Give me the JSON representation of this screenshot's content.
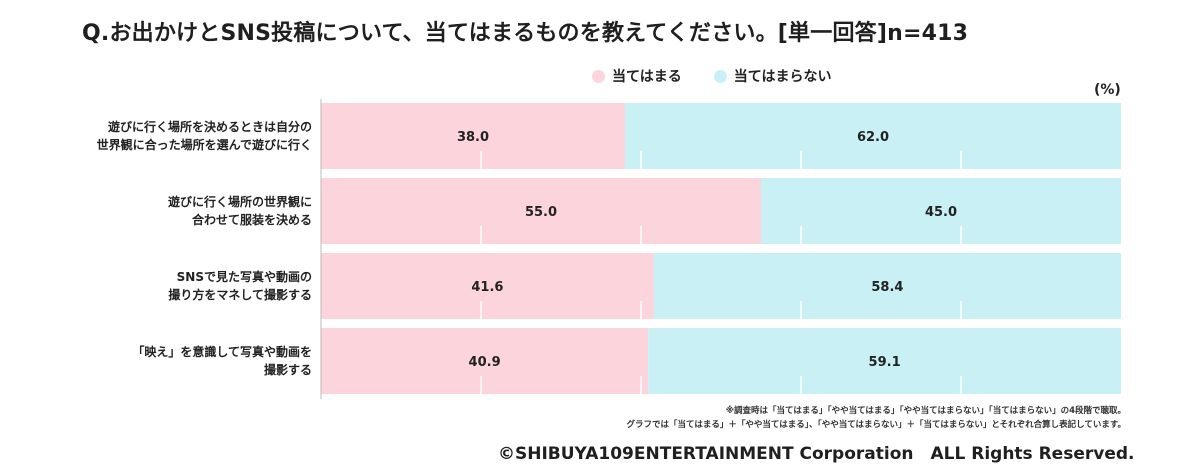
{
  "colors": {
    "applies": "#fcd5dc",
    "not_applies": "#c9f1f5",
    "axis": "#bbbbbb",
    "grid": "#ffffff"
  },
  "chart_data": {
    "type": "bar",
    "orientation": "horizontal",
    "stacked": true,
    "title": "Q.お出かけとSNS投稿について、当てはまるものを教えてください。[単一回答]n=413",
    "unit": "(%)",
    "xlim": [
      0,
      100
    ],
    "categories": [
      [
        "遊びに行く場所を決めるときは自分の",
        "世界観に合った場所を選んで遊びに行く"
      ],
      [
        "遊びに行く場所の世界観に",
        "合わせて服装を決める"
      ],
      [
        "SNSで見た写真や動画の",
        "撮り方をマネして撮影する"
      ],
      [
        "「映え」を意識して写真や動画を",
        "撮影する"
      ]
    ],
    "series": [
      {
        "name": "当てはまる",
        "values": [
          38.0,
          55.0,
          41.6,
          40.9
        ]
      },
      {
        "name": "当てはまらない",
        "values": [
          62.0,
          45.0,
          58.4,
          59.1
        ]
      }
    ]
  },
  "notes": [
    "※調査時は「当てはまる」「やや当てはまる」「やや当てはまらない」「当てはまらない」の4段階で聴取。",
    "グラフでは「当てはまる」＋「やや当てはまる」、「やや当てはまらない」＋「当てはまらない」とそれぞれ合算し表記しています。"
  ],
  "copyright": "©SHIBUYA109ENTERTAINMENT Corporation　ALL Rights Reserved."
}
